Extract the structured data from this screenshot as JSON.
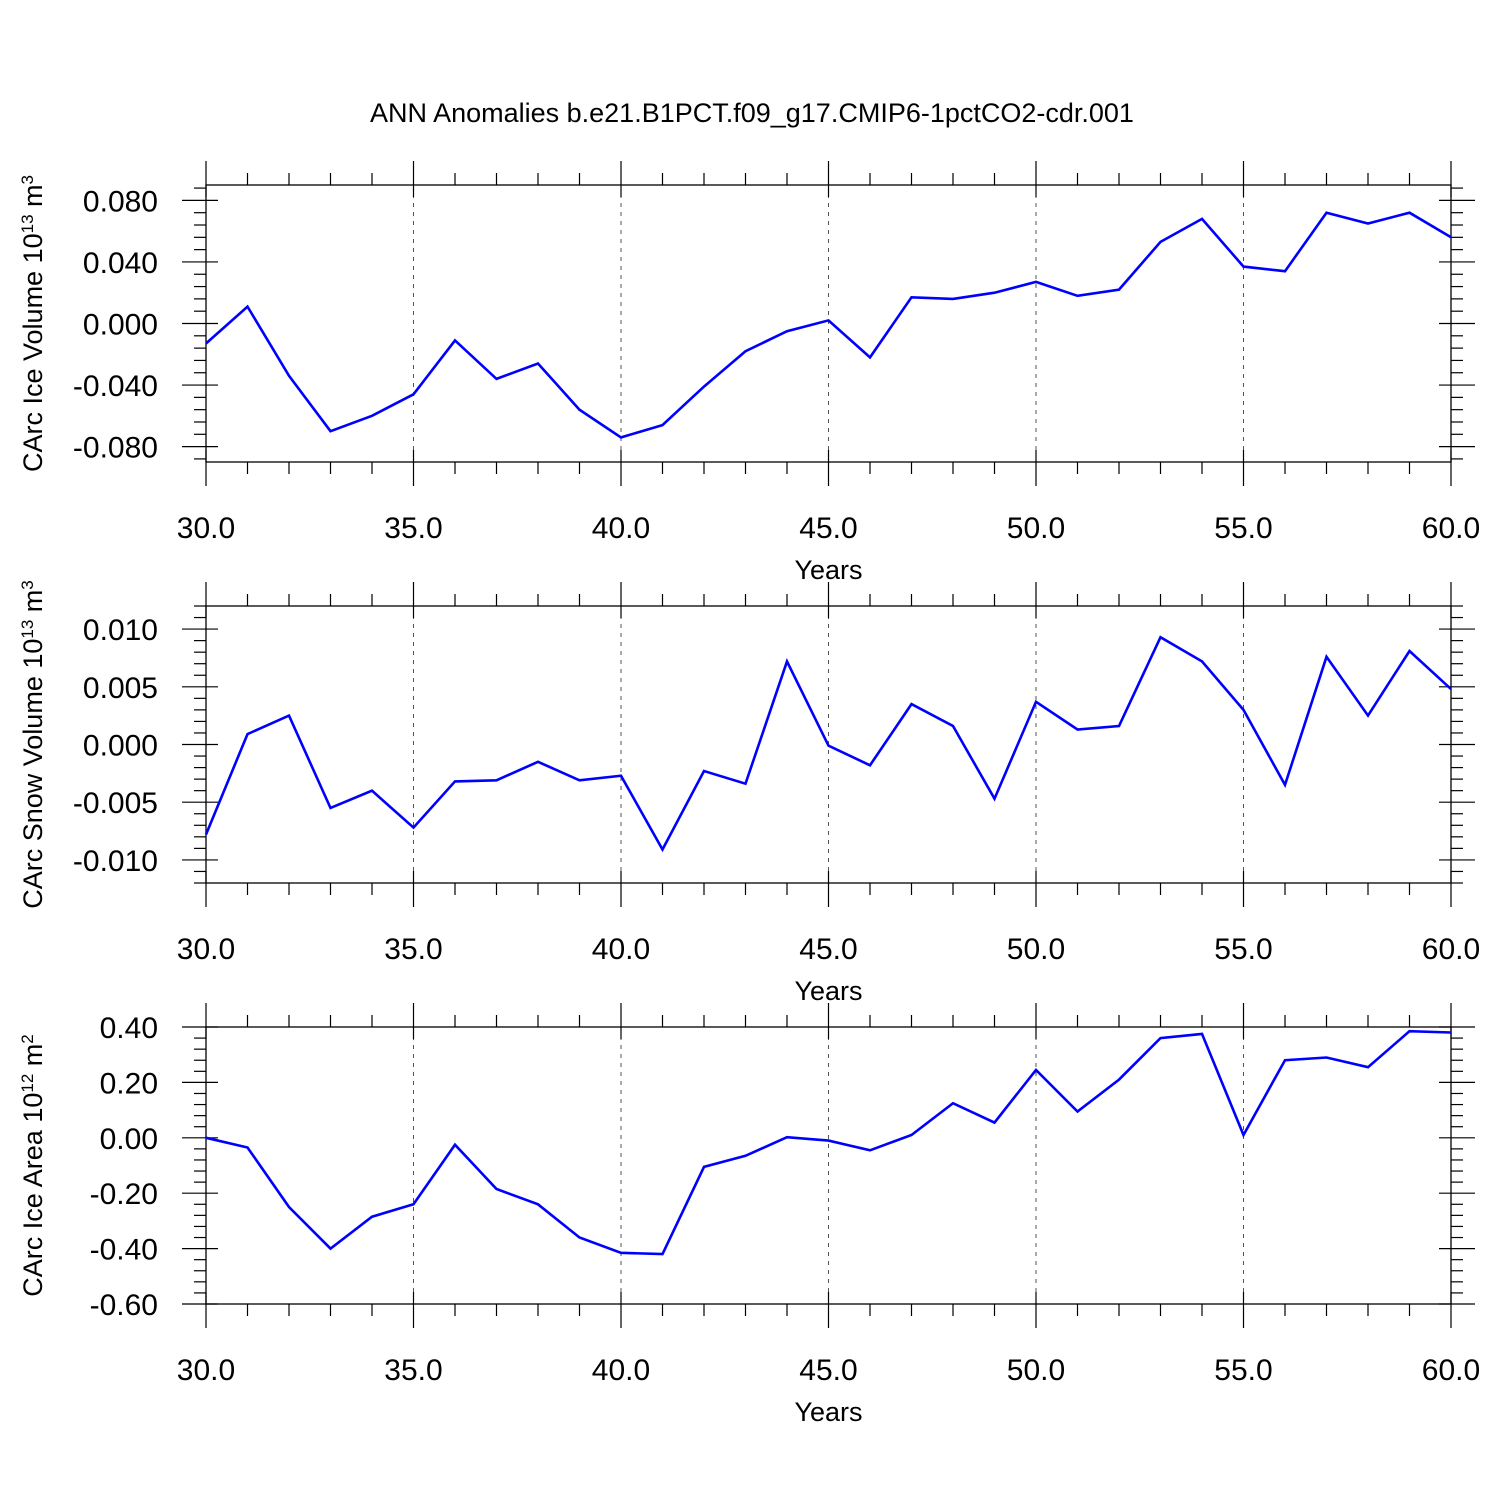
{
  "title": "ANN Anomalies b.e21.B1PCT.f09_g17.CMIP6-1pctCO2-cdr.001",
  "colors": {
    "line": "#0000ff",
    "axis": "#000000",
    "grid": "#555555"
  },
  "chart_data": [
    {
      "type": "line",
      "ylabel": {
        "main": "CArc Ice Volume 10",
        "sup": "13",
        "mid": " m",
        "sup2": "3"
      },
      "xlabel": "Years",
      "xlim": [
        30,
        60
      ],
      "ylim": [
        -0.09,
        0.09
      ],
      "xticks": [
        30,
        35,
        40,
        45,
        50,
        55,
        60
      ],
      "xtick_labels": [
        "30.0",
        "35.0",
        "40.0",
        "45.0",
        "50.0",
        "55.0",
        "60.0"
      ],
      "yticks": [
        -0.08,
        -0.04,
        0.0,
        0.04,
        0.08
      ],
      "ytick_labels": [
        "-0.080",
        "-0.040",
        "0.000",
        "0.040",
        "0.080"
      ],
      "grid": "vertical dashed at major x ticks",
      "x": [
        30,
        31,
        32,
        33,
        34,
        35,
        36,
        37,
        38,
        39,
        40,
        41,
        42,
        43,
        44,
        45,
        46,
        47,
        48,
        49,
        50,
        51,
        52,
        53,
        54,
        55,
        56,
        57,
        58,
        59,
        60
      ],
      "series": [
        {
          "values": [
            -0.013,
            0.011,
            -0.034,
            -0.07,
            -0.06,
            -0.046,
            -0.011,
            -0.036,
            -0.026,
            -0.056,
            -0.074,
            -0.066,
            -0.041,
            -0.018,
            -0.005,
            0.002,
            -0.022,
            0.017,
            0.016,
            0.02,
            0.027,
            0.018,
            0.022,
            0.053,
            0.068,
            0.037,
            0.034,
            0.072,
            0.065,
            0.072,
            0.056
          ]
        }
      ]
    },
    {
      "type": "line",
      "ylabel": {
        "main": "CArc Snow Volume 10",
        "sup": "13",
        "mid": " m",
        "sup2": "3"
      },
      "xlabel": "Years",
      "xlim": [
        30,
        60
      ],
      "ylim": [
        -0.012,
        0.012
      ],
      "xticks": [
        30,
        35,
        40,
        45,
        50,
        55,
        60
      ],
      "xtick_labels": [
        "30.0",
        "35.0",
        "40.0",
        "45.0",
        "50.0",
        "55.0",
        "60.0"
      ],
      "yticks": [
        -0.01,
        -0.005,
        0.0,
        0.005,
        0.01
      ],
      "ytick_labels": [
        "-0.010",
        "-0.005",
        "0.000",
        "0.005",
        "0.010"
      ],
      "grid": "vertical dashed at major x ticks",
      "x": [
        30,
        31,
        32,
        33,
        34,
        35,
        36,
        37,
        38,
        39,
        40,
        41,
        42,
        43,
        44,
        45,
        46,
        47,
        48,
        49,
        50,
        51,
        52,
        53,
        54,
        55,
        56,
        57,
        58,
        59,
        60
      ],
      "series": [
        {
          "values": [
            -0.0078,
            0.0009,
            0.0025,
            -0.0055,
            -0.004,
            -0.0072,
            -0.0032,
            -0.0031,
            -0.0015,
            -0.0031,
            -0.0027,
            -0.0091,
            -0.0023,
            -0.0034,
            0.0072,
            -0.0001,
            -0.0018,
            0.0035,
            0.0016,
            -0.0047,
            0.0037,
            0.0013,
            0.0016,
            0.0093,
            0.0072,
            0.003,
            -0.0035,
            0.0076,
            0.0025,
            0.0081,
            0.0048
          ]
        }
      ]
    },
    {
      "type": "line",
      "ylabel": {
        "main": "CArc Ice Area 10",
        "sup": "12",
        "mid": " m",
        "sup2": "2"
      },
      "xlabel": "Years",
      "xlim": [
        30,
        60
      ],
      "ylim": [
        -0.6,
        0.4
      ],
      "xticks": [
        30,
        35,
        40,
        45,
        50,
        55,
        60
      ],
      "xtick_labels": [
        "30.0",
        "35.0",
        "40.0",
        "45.0",
        "50.0",
        "55.0",
        "60.0"
      ],
      "yticks": [
        -0.6,
        -0.4,
        -0.2,
        0.0,
        0.2,
        0.4
      ],
      "ytick_labels": [
        "-0.60",
        "-0.40",
        "-0.20",
        "0.00",
        "0.20",
        "0.40"
      ],
      "grid": "vertical dashed at major x ticks",
      "x": [
        30,
        31,
        32,
        33,
        34,
        35,
        36,
        37,
        38,
        39,
        40,
        41,
        42,
        43,
        44,
        45,
        46,
        47,
        48,
        49,
        50,
        51,
        52,
        53,
        54,
        55,
        56,
        57,
        58,
        59,
        60
      ],
      "series": [
        {
          "values": [
            0.0,
            -0.035,
            -0.25,
            -0.4,
            -0.285,
            -0.24,
            -0.025,
            -0.185,
            -0.24,
            -0.36,
            -0.415,
            -0.42,
            -0.105,
            -0.065,
            0.002,
            -0.01,
            -0.045,
            0.01,
            0.125,
            0.055,
            0.245,
            0.095,
            0.21,
            0.36,
            0.375,
            0.01,
            0.28,
            0.29,
            0.255,
            0.385,
            0.38
          ]
        }
      ]
    }
  ]
}
